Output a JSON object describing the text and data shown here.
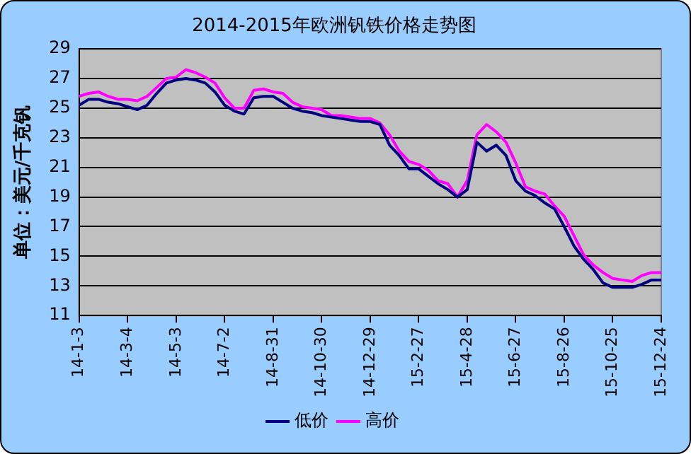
{
  "chart_data": {
    "type": "line",
    "title": "2014-2015年欧洲钒铁价格走势图",
    "ylabel": "单位：美元/千克钒",
    "categories": [
      "14-1-3",
      null,
      null,
      null,
      null,
      "14-3-4",
      null,
      null,
      null,
      null,
      "14-5-3",
      null,
      null,
      null,
      null,
      "14-7-2",
      null,
      null,
      null,
      null,
      "14-8-31",
      null,
      null,
      null,
      null,
      "14-10-30",
      null,
      null,
      null,
      null,
      "14-12-29",
      null,
      null,
      null,
      null,
      "15-2-27",
      null,
      null,
      null,
      null,
      "15-4-28",
      null,
      null,
      null,
      null,
      "15-6-27",
      null,
      null,
      null,
      null,
      "15-8-26",
      null,
      null,
      null,
      null,
      "15-10-25",
      null,
      null,
      null,
      null,
      "15-12-24"
    ],
    "series": [
      {
        "name": "低价",
        "color": "#000080",
        "values": [
          25.2,
          25.6,
          25.6,
          25.4,
          25.3,
          25.1,
          24.9,
          25.2,
          26.0,
          26.7,
          26.9,
          27.0,
          26.9,
          26.7,
          26.1,
          25.2,
          24.8,
          24.6,
          25.7,
          25.8,
          25.8,
          25.4,
          25.0,
          24.8,
          24.7,
          24.5,
          24.4,
          24.3,
          24.2,
          24.1,
          24.1,
          23.9,
          22.5,
          21.8,
          20.9,
          20.9,
          20.4,
          19.9,
          19.5,
          19.0,
          19.5,
          22.7,
          22.1,
          22.5,
          21.8,
          20.1,
          19.4,
          19.1,
          18.6,
          18.2,
          17.0,
          15.7,
          14.8,
          14.1,
          13.2,
          12.9,
          12.9,
          12.9,
          13.1,
          13.4,
          13.4
        ]
      },
      {
        "name": "高价",
        "color": "#ff00ff",
        "values": [
          25.8,
          26.0,
          26.1,
          25.8,
          25.6,
          25.6,
          25.5,
          25.8,
          26.4,
          27.0,
          27.1,
          27.6,
          27.4,
          27.1,
          26.7,
          25.7,
          25.0,
          25.0,
          26.2,
          26.3,
          26.1,
          26.0,
          25.4,
          25.1,
          25.0,
          24.9,
          24.5,
          24.5,
          24.4,
          24.3,
          24.3,
          24.0,
          23.2,
          22.1,
          21.4,
          21.2,
          20.8,
          20.1,
          19.9,
          19.0,
          20.1,
          23.2,
          23.9,
          23.4,
          22.7,
          21.3,
          19.7,
          19.4,
          19.2,
          18.4,
          17.7,
          16.4,
          15.1,
          14.4,
          13.9,
          13.5,
          13.4,
          13.3,
          13.7,
          13.9,
          13.9
        ]
      }
    ],
    "ylim": [
      11,
      29
    ],
    "yticks": [
      11,
      13,
      15,
      17,
      19,
      21,
      23,
      25,
      27,
      29
    ],
    "grid": "y",
    "legend": "bottom",
    "marker": "none",
    "line_style": "solid"
  }
}
